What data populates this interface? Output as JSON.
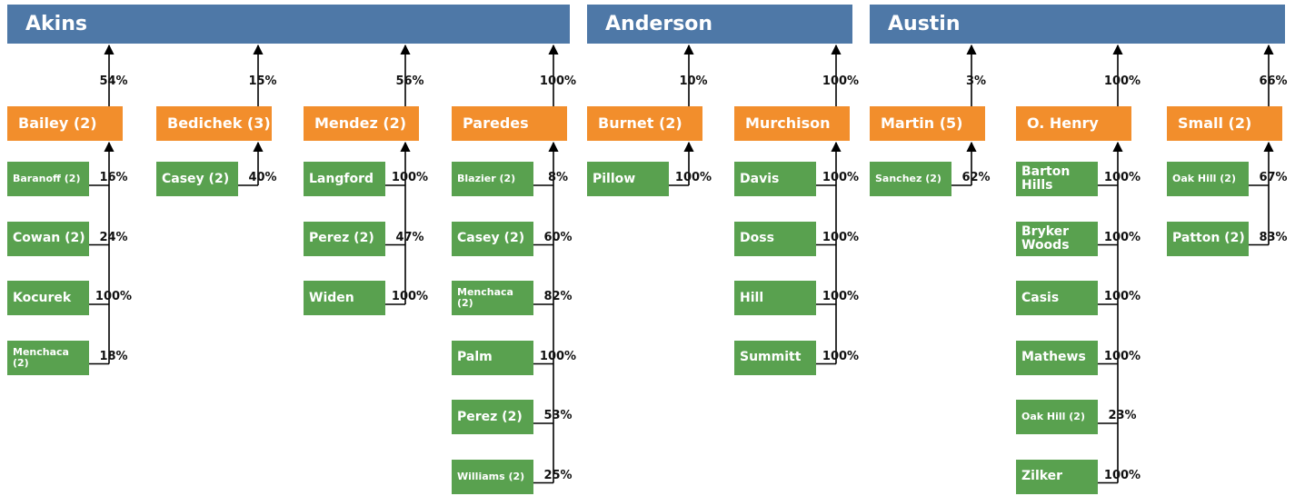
{
  "high_schools": [
    {
      "name": "Akins",
      "middle_schools": [
        {
          "name": "Bailey (2)",
          "percent": "54%",
          "elementary": [
            {
              "name": "Baranoff (2)",
              "percent": "16%"
            },
            {
              "name": "Cowan (2)",
              "percent": "24%"
            },
            {
              "name": "Kocurek",
              "percent": "100%"
            },
            {
              "name": "Menchaca (2)",
              "percent": "18%"
            }
          ]
        },
        {
          "name": "Bedichek (3)",
          "percent": "15%",
          "elementary": [
            {
              "name": "Casey (2)",
              "percent": "40%"
            }
          ]
        },
        {
          "name": "Mendez (2)",
          "percent": "56%",
          "elementary": [
            {
              "name": "Langford",
              "percent": "100%"
            },
            {
              "name": "Perez (2)",
              "percent": "47%"
            },
            {
              "name": "Widen",
              "percent": "100%"
            }
          ]
        },
        {
          "name": "Paredes",
          "percent": "100%",
          "elementary": [
            {
              "name": "Blazier (2)",
              "percent": "8%"
            },
            {
              "name": "Casey (2)",
              "percent": "60%"
            },
            {
              "name": "Menchaca (2)",
              "percent": "82%"
            },
            {
              "name": "Palm",
              "percent": "100%"
            },
            {
              "name": "Perez (2)",
              "percent": "53%"
            },
            {
              "name": "Williams (2)",
              "percent": "25%"
            }
          ]
        }
      ]
    },
    {
      "name": "Anderson",
      "middle_schools": [
        {
          "name": "Burnet (2)",
          "percent": "10%",
          "elementary": [
            {
              "name": "Pillow",
              "percent": "100%"
            }
          ]
        },
        {
          "name": "Murchison",
          "percent": "100%",
          "elementary": [
            {
              "name": "Davis",
              "percent": "100%"
            },
            {
              "name": "Doss",
              "percent": "100%"
            },
            {
              "name": "Hill",
              "percent": "100%"
            },
            {
              "name": "Summitt",
              "percent": "100%"
            }
          ]
        }
      ]
    },
    {
      "name": "Austin",
      "middle_schools": [
        {
          "name": "Martin (5)",
          "percent": "3%",
          "elementary": [
            {
              "name": "Sanchez (2)",
              "percent": "62%"
            }
          ]
        },
        {
          "name": "O. Henry",
          "percent": "100%",
          "elementary": [
            {
              "name": "Barton Hills",
              "percent": "100%"
            },
            {
              "name": "Bryker Woods",
              "percent": "100%"
            },
            {
              "name": "Casis",
              "percent": "100%"
            },
            {
              "name": "Mathews",
              "percent": "100%"
            },
            {
              "name": "Oak Hill (2)",
              "percent": "23%"
            },
            {
              "name": "Zilker",
              "percent": "100%"
            }
          ]
        },
        {
          "name": "Small (2)",
          "percent": "66%",
          "elementary": [
            {
              "name": "Oak Hill (2)",
              "percent": "67%"
            },
            {
              "name": "Patton (2)",
              "percent": "83%"
            }
          ]
        }
      ]
    }
  ]
}
